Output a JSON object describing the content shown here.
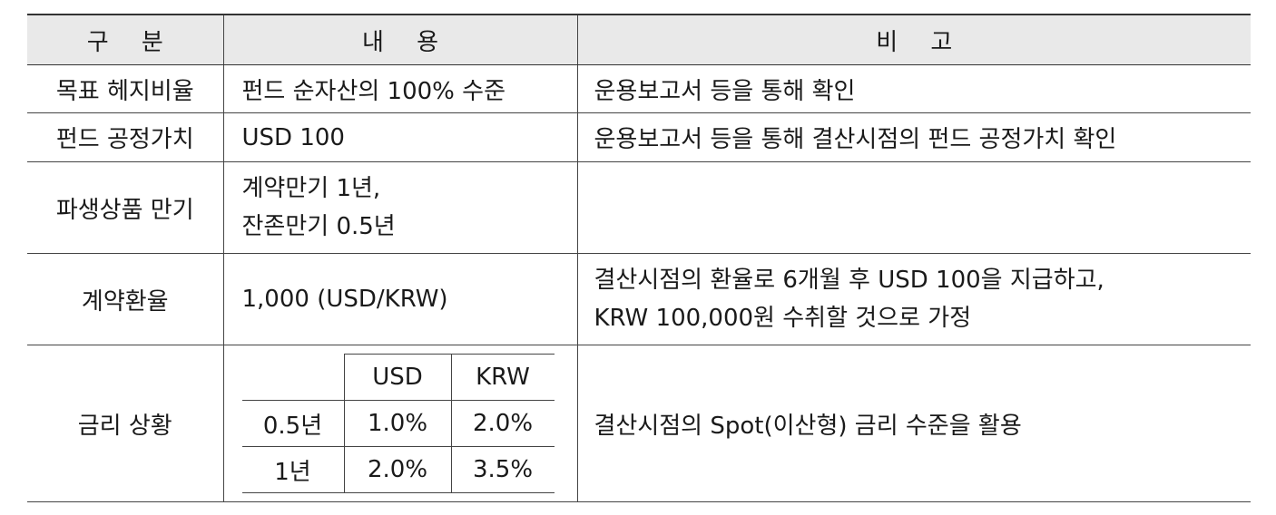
{
  "header": {
    "col1": "구 분",
    "col2": "내 용",
    "col3": "비 고"
  },
  "rows": [
    {
      "label": "목표 헤지비율",
      "content": "펀드 순자산의 100% 수준",
      "note": "운용보고서 등을 통해 확인"
    },
    {
      "label": "펀드 공정가치",
      "content": "USD 100",
      "note": "운용보고서 등을 통해 결산시점의 펀드 공정가치 확인"
    },
    {
      "label": "파생상품 만기",
      "content_lines": [
        "계약만기 1년,",
        "잔존만기 0.5년"
      ],
      "note": ""
    },
    {
      "label": "계약환율",
      "content": "1,000 (USD/KRW)",
      "note_lines": [
        "결산시점의 환율로 6개월 후 USD 100을 지급하고,",
        "KRW 100,000원 수취할 것으로 가정"
      ]
    },
    {
      "label": "금리 상황",
      "note": "결산시점의 Spot(이산형) 금리 수준을 활용"
    }
  ],
  "rates": {
    "columns": [
      "USD",
      "KRW"
    ],
    "rows": [
      {
        "term": "0.5년",
        "usd": "1.0%",
        "krw": "2.0%"
      },
      {
        "term": "1년",
        "usd": "2.0%",
        "krw": "3.5%"
      }
    ]
  }
}
